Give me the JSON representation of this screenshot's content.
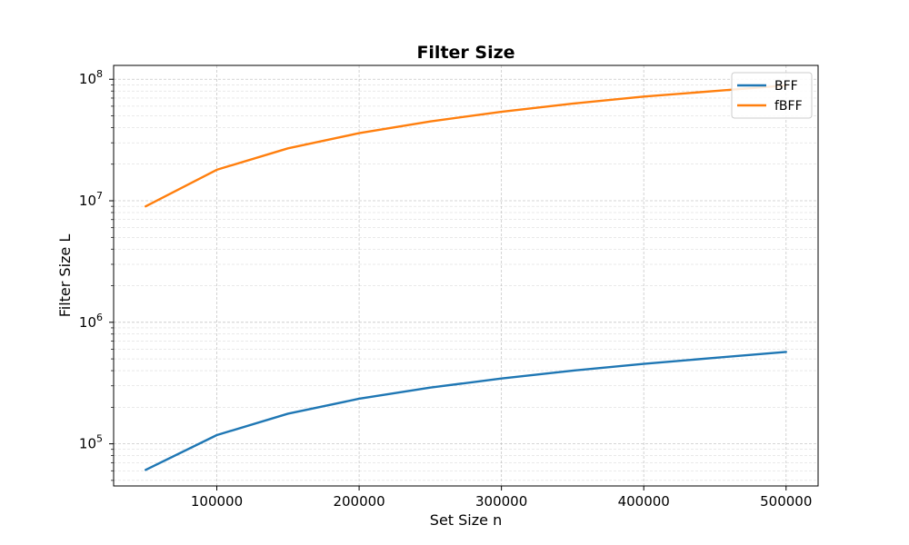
{
  "chart_data": {
    "type": "line",
    "title": "Filter Size",
    "xlabel": "Set Size n",
    "ylabel": "Filter Size L",
    "yscale": "log",
    "grid": true,
    "legend_position": "top-right",
    "xlim": [
      27500,
      522500
    ],
    "ylim": [
      45000,
      130000000
    ],
    "x_ticks": [
      100000,
      200000,
      300000,
      400000,
      500000
    ],
    "x_tick_labels": [
      "100000",
      "200000",
      "300000",
      "400000",
      "500000"
    ],
    "y_ticks": [
      100000,
      1000000,
      10000000,
      100000000
    ],
    "y_tick_labels": [
      {
        "base": "10",
        "exp": "5"
      },
      {
        "base": "10",
        "exp": "6"
      },
      {
        "base": "10",
        "exp": "7"
      },
      {
        "base": "10",
        "exp": "8"
      }
    ],
    "x": [
      50000,
      100000,
      150000,
      200000,
      250000,
      300000,
      350000,
      400000,
      450000,
      500000
    ],
    "series": [
      {
        "name": "BFF",
        "color": "#1f77b4",
        "values": [
          61000,
          118000,
          177000,
          235000,
          290000,
          345000,
          400000,
          455000,
          510000,
          570000
        ]
      },
      {
        "name": "fBFF",
        "color": "#ff7f0e",
        "values": [
          9000000,
          18000000,
          27000000,
          36000000,
          45000000,
          54000000,
          63000000,
          72000000,
          80000000,
          89000000
        ]
      }
    ]
  }
}
